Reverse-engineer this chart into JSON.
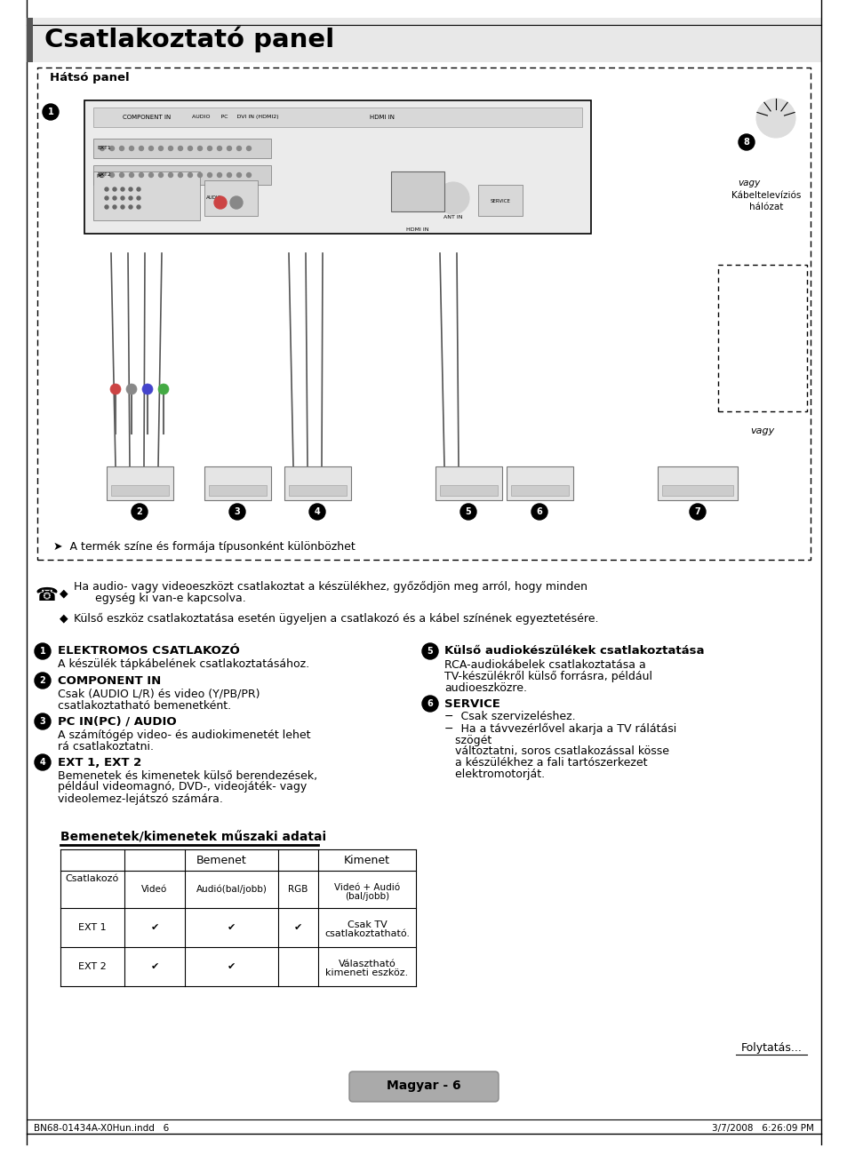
{
  "title_text": "Csatlakoztató panel",
  "bg_color": "#ffffff",
  "subtitle_diagram": "Hátsó panel",
  "note_arrow": "A termék színe és formája típusonként különbözhet",
  "note1_line1": "Ha audio- vagy videoeszközt csatlakoztat a készülékhez, győződjön meg arról, hogy minden",
  "note1_line2": "      egység ki van-e kapcsolva.",
  "note2": "Külső eszköz csatlakoztatása esetén ügyeljen a csatlakozó és a kábel színének egyeztetésére.",
  "items_left": [
    {
      "num": "1",
      "bold": "ELEKTROMOS CSATLAKOZÓ",
      "lines": [
        "A készülék tápkábelének csatlakoztatásához."
      ]
    },
    {
      "num": "2",
      "bold": "COMPONENT IN",
      "lines": [
        "Csak (AUDIO L/R) és video (Y/PB/PR)",
        "csatlakoztatható bemenetként."
      ]
    },
    {
      "num": "3",
      "bold": "PC IN(PC) / AUDIO",
      "lines": [
        "A számítógép video- és audiokimenetét lehet",
        "rá csatlakoztatni."
      ]
    },
    {
      "num": "4",
      "bold": "EXT 1, EXT 2",
      "lines": [
        "Bemenetek és kimenetek külső berendezések,",
        "például videomagnó, DVD-, videojáték- vagy",
        "videolemez-lejátszó számára."
      ]
    }
  ],
  "items_right": [
    {
      "num": "5",
      "bold": "Külső audiokészülékek csatlakoztatása",
      "lines": [
        "RCA-audiokábelek csatlakoztatása a",
        "TV-készülékről külső forrásra, például",
        "audioeszközre."
      ]
    },
    {
      "num": "6",
      "bold": "SERVICE",
      "lines": [
        "−  Csak szervizeléshez.",
        "−  Ha a távvezérlővel akarja a TV rálátási",
        "   szögét",
        "   változtatni, soros csatlakozással kösse",
        "   a készülékhez a fali tartószerkezet",
        "   elektromotorját."
      ]
    }
  ],
  "table_title": "Bemenetek/kimenetek műszaki adatai",
  "footer_left": "BN68-01434A-X0Hun.indd   6",
  "footer_right": "3/7/2008   6:26:09 PM",
  "footer_page": "Magyar - 6",
  "folyatatas": "Folytatás..."
}
